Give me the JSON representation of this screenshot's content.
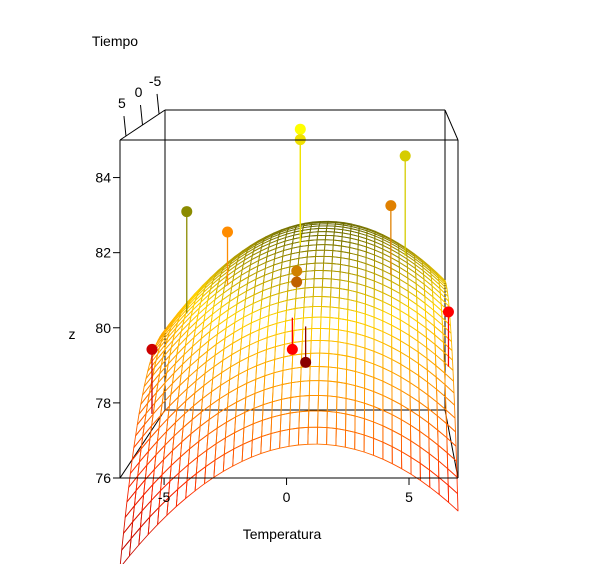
{
  "chart_data": {
    "type": "surface3d",
    "title": "",
    "xlabel": "Temperatura",
    "ylabel": "Tiempo",
    "zlabel": "z",
    "x_ticks": [
      "-5",
      "0",
      "5"
    ],
    "y_ticks": [
      "5",
      "0",
      "-5"
    ],
    "z_ticks": [
      "76",
      "78",
      "80",
      "82",
      "84"
    ],
    "xlim": [
      -6.8,
      7.0
    ],
    "ylim": [
      -6.8,
      6.8
    ],
    "zlim": [
      76,
      85
    ],
    "surface": {
      "description_model": "quadratic response surface",
      "x_range": [
        -6.8,
        7.0
      ],
      "y_range": [
        -6.8,
        6.8
      ],
      "coef": {
        "intercept": 80.6,
        "x": 0.12,
        "y": -0.35,
        "x2": -0.052,
        "y2": -0.03,
        "xy": 0.0
      },
      "color_scale": [
        "#b40000",
        "#ff2a00",
        "#ff8c00",
        "#ffd200",
        "#6b6b00"
      ]
    },
    "points": [
      {
        "x": -6.1,
        "y": 2.0,
        "z": 78.9,
        "color": "#cc0000"
      },
      {
        "x": -5.2,
        "y": -3.0,
        "z": 82.3,
        "color": "#8b8b00"
      },
      {
        "x": -3.2,
        "y": -2.0,
        "z": 81.8,
        "color": "#ff8c00"
      },
      {
        "x": 0.0,
        "y": 2.0,
        "z": 78.9,
        "color": "#ff0000"
      },
      {
        "x": 0.6,
        "y": 2.5,
        "z": 78.6,
        "color": "#8b0000"
      },
      {
        "x": 0.1,
        "y": -2.8,
        "z": 84.7,
        "color": "#ffff00"
      },
      {
        "x": 0.1,
        "y": -2.8,
        "z": 84.4,
        "color": "#f0e000"
      },
      {
        "x": 0.1,
        "y": 0.2,
        "z": 80.9,
        "color": "#d08000"
      },
      {
        "x": 0.1,
        "y": 0.3,
        "z": 80.6,
        "color": "#c06000"
      },
      {
        "x": 4.3,
        "y": -1.5,
        "z": 82.6,
        "color": "#e08000"
      },
      {
        "x": 5.0,
        "y": -4.5,
        "z": 83.8,
        "color": "#d6cc00"
      },
      {
        "x": 6.8,
        "y": 1.6,
        "z": 79.9,
        "color": "#ff0000"
      }
    ]
  }
}
